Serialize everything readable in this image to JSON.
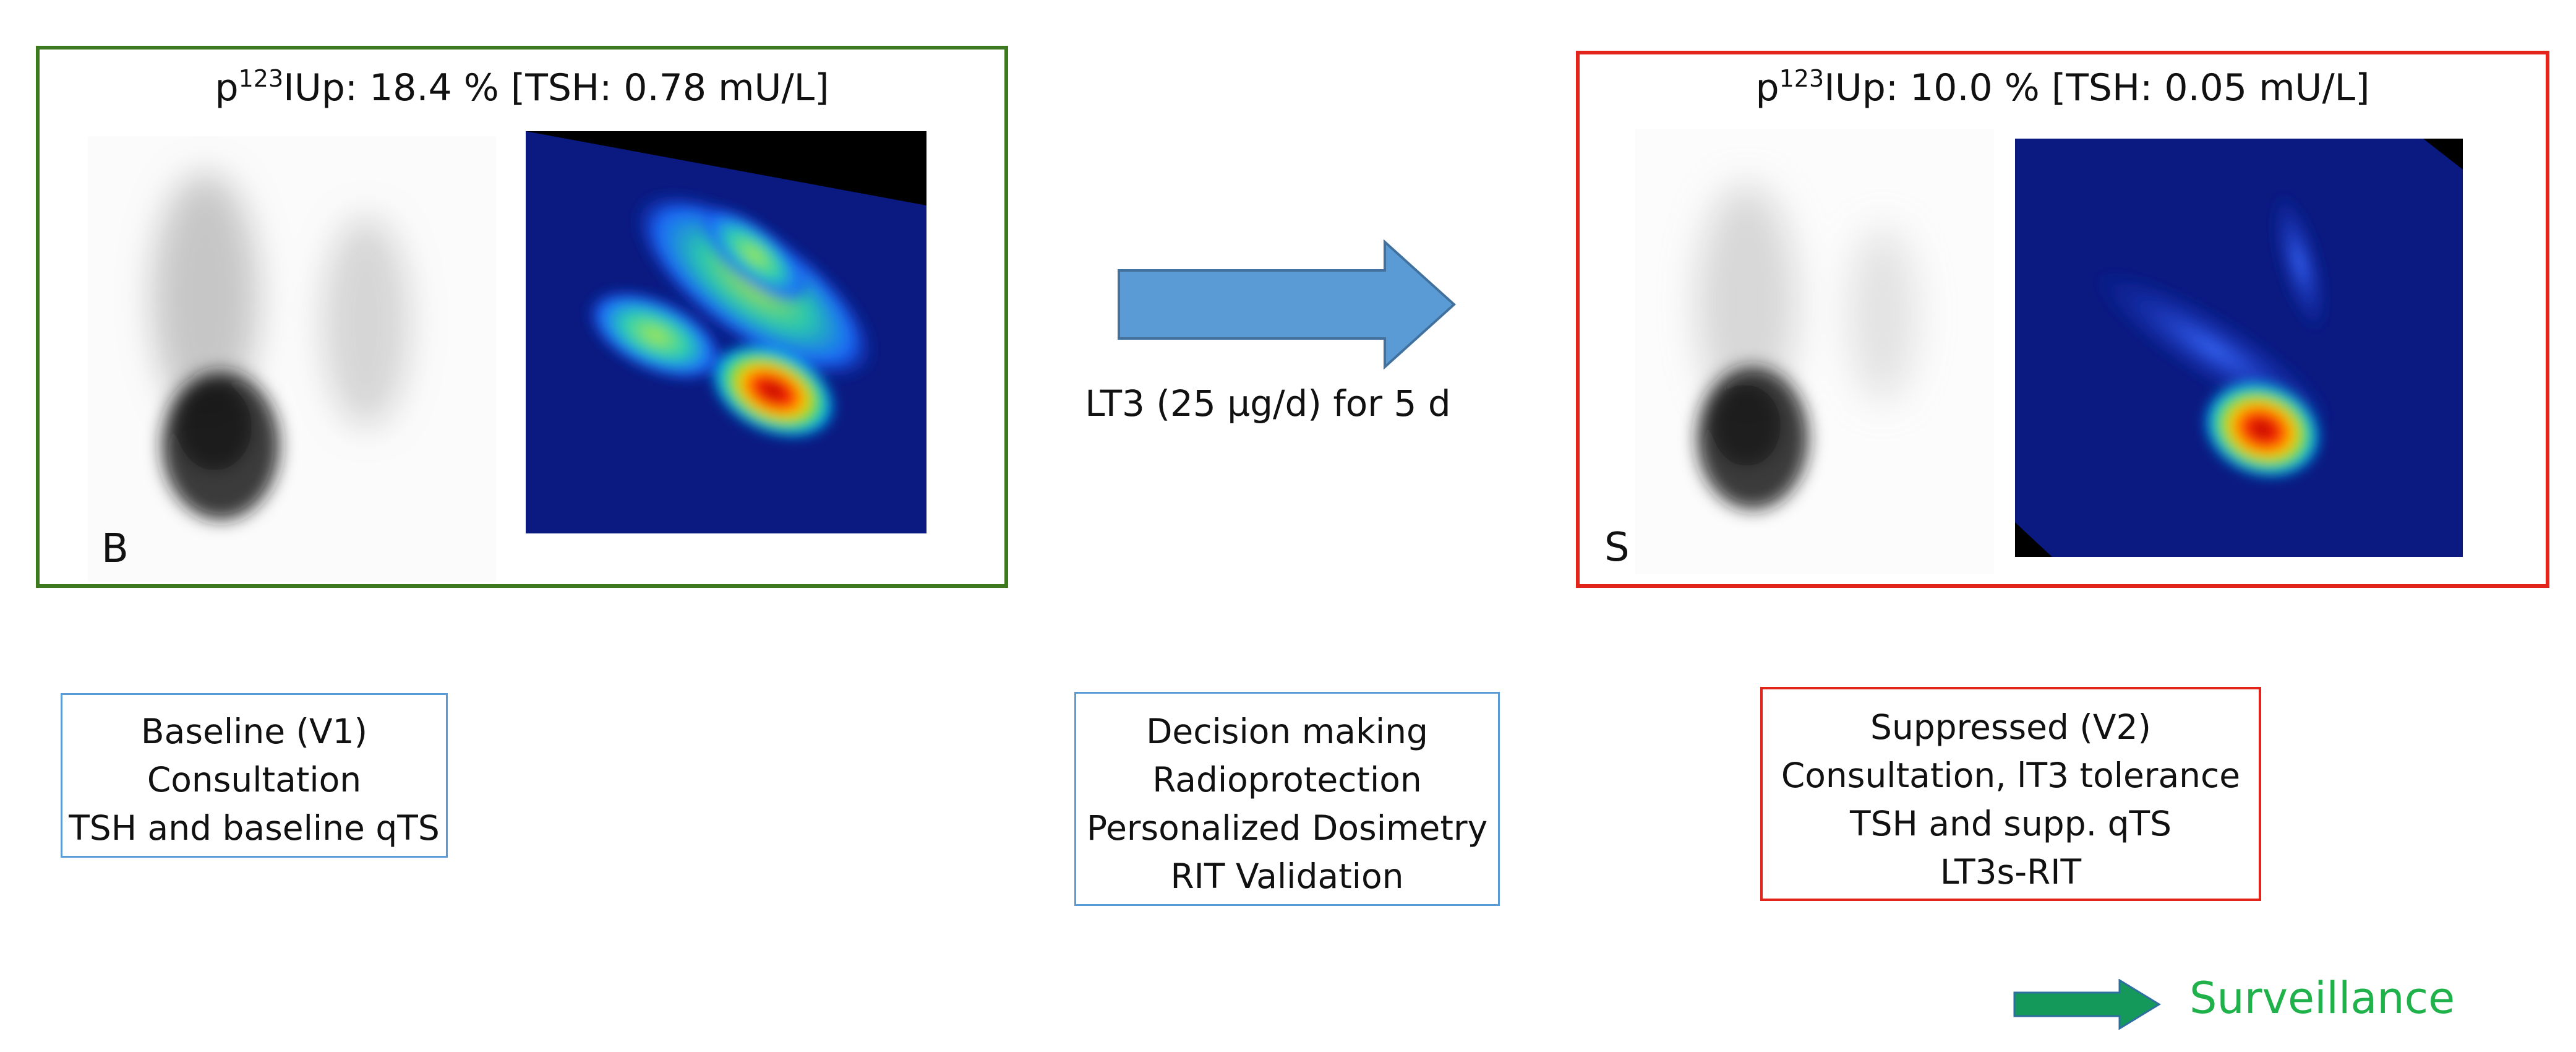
{
  "panels": {
    "baseline": {
      "uptake_prefix": "p",
      "uptake_sup": "123",
      "uptake_rest": "IUp: 18.4 % [TSH: 0.78 mU/L]",
      "letter": "B",
      "border_color": "#3d7a1f"
    },
    "suppressed": {
      "uptake_prefix": "p",
      "uptake_sup": "123",
      "uptake_rest": "IUp: 10.0 % [TSH: 0.05 mU/L]",
      "letter": "S",
      "border_color": "#e3241b"
    }
  },
  "transition": {
    "label": "LT3 (25 µg/d) for 5 d",
    "arrow_color": "#5b9bd5"
  },
  "boxes": {
    "baseline": {
      "lines": [
        "Baseline (V1)",
        "Consultation",
        "TSH and baseline qTS"
      ]
    },
    "decision": {
      "lines": [
        "Decision making",
        "Radioprotection",
        "Personalized Dosimetry",
        "RIT Validation"
      ]
    },
    "suppressed": {
      "lines": [
        "Suppressed (V2)",
        "Consultation, lT3 tolerance",
        "TSH and supp. qTS",
        "LT3s-RIT"
      ]
    }
  },
  "surveillance": {
    "label": "Surveillance",
    "color": "#1fb24a",
    "arrow_color": "#14995a"
  }
}
